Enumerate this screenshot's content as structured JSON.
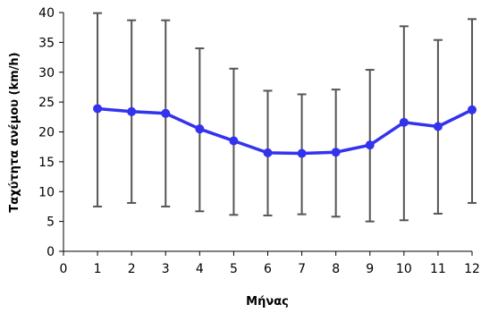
{
  "chart_data": {
    "type": "line",
    "title": "",
    "xlabel": "Μήνας",
    "ylabel": "Ταχύτητα ανέμου (km/h)",
    "xlim": [
      0,
      12
    ],
    "ylim": [
      0,
      40
    ],
    "x_ticks": [
      0,
      1,
      2,
      3,
      4,
      5,
      6,
      7,
      8,
      9,
      10,
      11,
      12
    ],
    "y_ticks": [
      0,
      5,
      10,
      15,
      20,
      25,
      30,
      35,
      40
    ],
    "grid": false,
    "legend": "none",
    "series": [
      {
        "color": "#3333ee",
        "x": [
          1,
          2,
          3,
          4,
          5,
          6,
          7,
          8,
          9,
          10,
          11,
          12
        ],
        "y": [
          23.9,
          23.4,
          23.1,
          20.5,
          18.5,
          16.5,
          16.4,
          16.6,
          17.8,
          21.6,
          20.9,
          23.7
        ],
        "error_low": [
          7.5,
          8.1,
          7.5,
          6.7,
          6.1,
          6.0,
          6.2,
          5.8,
          5.0,
          5.2,
          6.3,
          8.1
        ],
        "error_high": [
          39.9,
          38.7,
          38.7,
          34.0,
          30.6,
          26.9,
          26.3,
          27.1,
          30.4,
          37.7,
          35.4,
          38.9
        ]
      }
    ],
    "error_bar_color": "#555555"
  }
}
